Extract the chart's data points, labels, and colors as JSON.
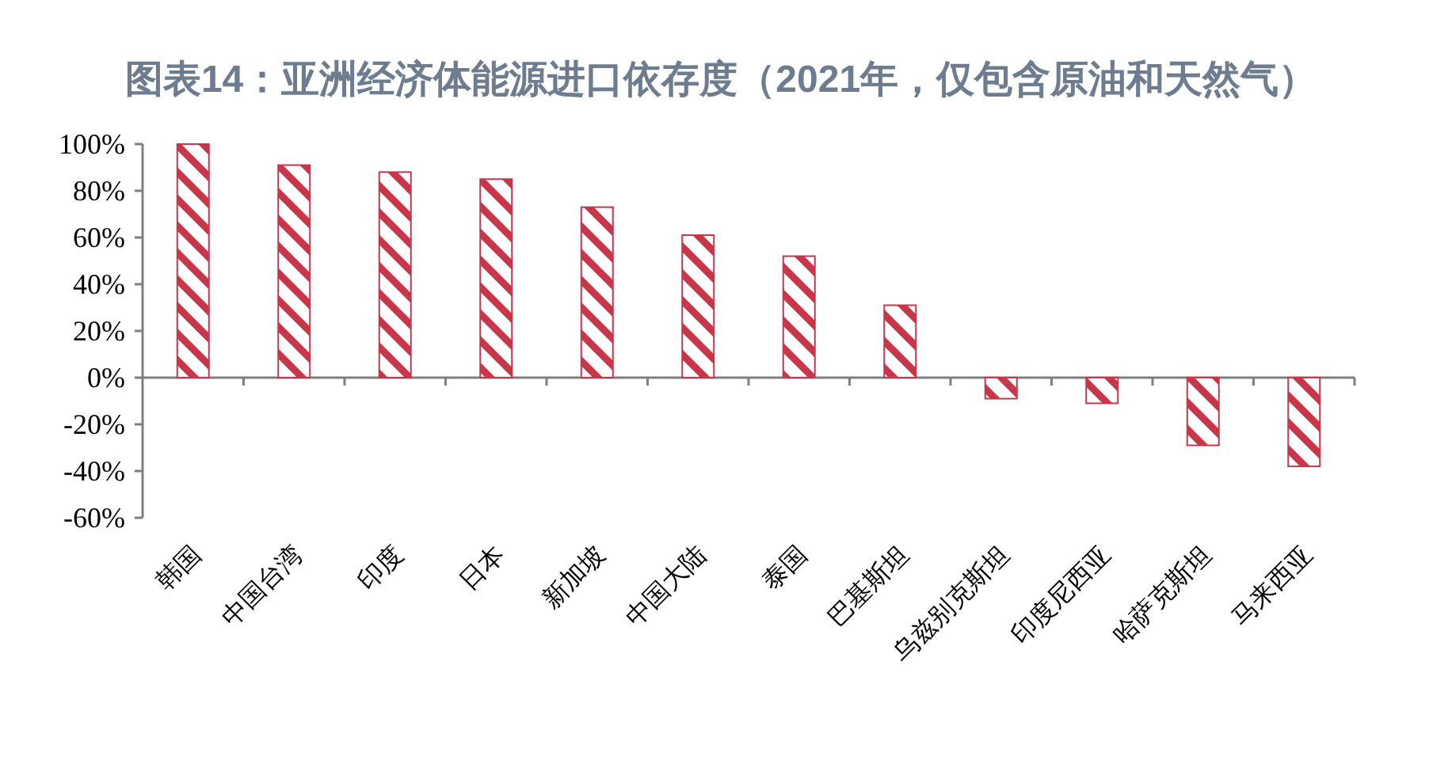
{
  "chart_data": {
    "type": "bar",
    "title": "图表14：亚洲经济体能源进口依存度（2021年，仅包含原油和天然气）",
    "categories": [
      "韩国",
      "中国台湾",
      "印度",
      "日本",
      "新加坡",
      "中国大陆",
      "泰国",
      "巴基斯坦",
      "乌兹别克斯坦",
      "印度尼西亚",
      "哈萨克斯坦",
      "马来西亚"
    ],
    "values": [
      100,
      91,
      88,
      85,
      73,
      61,
      52,
      31,
      -9,
      -11,
      -29,
      -38
    ],
    "color": "#c8364a",
    "ylim": [
      -60,
      100
    ],
    "yticks": [
      {
        "value": -60,
        "label": "-60%"
      },
      {
        "value": -40,
        "label": "-40%"
      },
      {
        "value": -20,
        "label": "-20%"
      },
      {
        "value": 0,
        "label": "0%"
      },
      {
        "value": 20,
        "label": "20%"
      },
      {
        "value": 40,
        "label": "40%"
      },
      {
        "value": 60,
        "label": "60%"
      },
      {
        "value": 80,
        "label": "80%"
      },
      {
        "value": 100,
        "label": "100%"
      }
    ]
  }
}
